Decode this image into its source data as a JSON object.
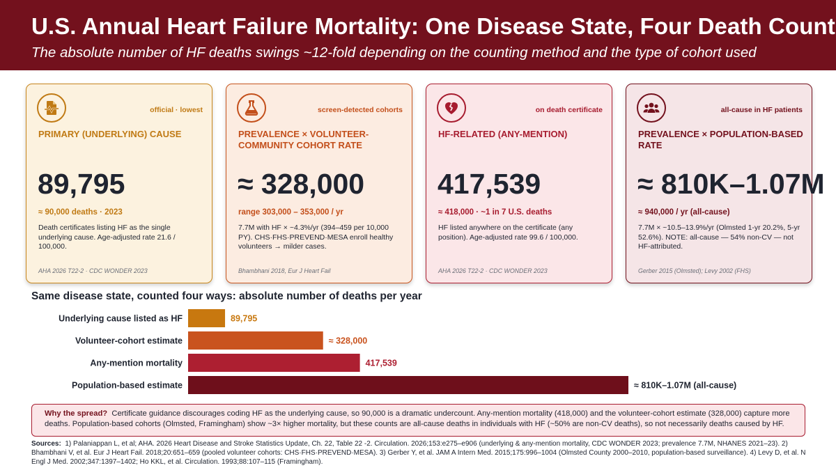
{
  "header": {
    "title": "U.S. Annual Heart Failure Mortality: One Disease State, Four Death Counts",
    "subtitle": "The absolute number of HF deaths swings ~12-fold depending on the counting method and the type of cohort used"
  },
  "cards": [
    {
      "icon": "file-pulse-icon",
      "tag": "official · lowest",
      "label": "PRIMARY (UNDERLYING) CAUSE",
      "value": "89,795",
      "sub": "≈ 90,000 deaths · 2023",
      "desc": "Death certificates listing HF as the single underlying cause. Age-adjusted rate 21.6 / 100,000.",
      "source": "AHA 2026 T22-2 · CDC WONDER 2023",
      "color": "#c07a14"
    },
    {
      "icon": "flask-icon",
      "tag": "screen-detected cohorts",
      "label": "PREVALENCE × VOLUNTEER-COMMUNITY COHORT RATE",
      "value": "≈ 328,000",
      "sub": "range 303,000 – 353,000 / yr",
      "desc": "7.7M with HF × ~4.3%/yr (394–459 per 10,000 PY). CHS·FHS·PREVEND·MESA enroll healthy volunteers → milder cases.",
      "source": "Bhambhani 2018, Eur J Heart Fail",
      "color": "#c34f1b"
    },
    {
      "icon": "broken-heart-icon",
      "tag": "on death certificate",
      "label": "HF-RELATED (ANY-MENTION)",
      "value": "417,539",
      "sub": "≈ 418,000 · ~1 in 7 U.S. deaths",
      "desc": "HF listed anywhere on the certificate (any position). Age-adjusted rate 99.6 / 100,000.",
      "source": "AHA 2026 T22-2 · CDC WONDER 2023",
      "color": "#a71c2f"
    },
    {
      "icon": "people-group-icon",
      "tag": "all-cause in HF patients",
      "label": "PREVALENCE × POPULATION-BASED RATE",
      "value": "≈ 810K–1.07M",
      "sub": "≈ 940,000 / yr (all-cause)",
      "desc": "7.7M × ~10.5–13.9%/yr (Olmsted 1-yr 20.2%, 5-yr 52.6%). NOTE: all-cause — 54% non-CV — not HF-attributed.",
      "source": "Gerber 2015 (Olmsted); Levy 2002 (FHS)",
      "color": "#73111d"
    }
  ],
  "chart_title": "Same disease state, counted four ways: absolute number of deaths per year",
  "chart_data": {
    "type": "bar",
    "orientation": "horizontal",
    "title": "Same disease state, counted four ways: absolute number of deaths per year",
    "categories": [
      "Underlying cause listed as HF",
      "Volunteer-cohort estimate",
      "Any-mention mortality",
      "Population-based estimate"
    ],
    "values": [
      89795,
      328000,
      417539,
      1070000
    ],
    "range_low": [
      null,
      null,
      null,
      810000
    ],
    "value_labels": [
      "89,795",
      "≈ 328,000",
      "417,539",
      "≈ 810K–1.07M (all-cause)"
    ],
    "colors": [
      "#c8780f",
      "#c9531e",
      "#ad1f31",
      "#6e0f1b"
    ],
    "xlim": [
      0,
      1070000
    ],
    "grid": false,
    "xaxis_visible": false
  },
  "note": {
    "lead": "Why the spread?",
    "text": "Certificate guidance discourages coding HF as the underlying cause, so 90,000 is a dramatic undercount. Any-mention mortality (418,000) and the volunteer-cohort estimate (328,000) capture more deaths. Population-based cohorts (Olmsted, Framingham) show ~3× higher mortality, but these counts are all-cause deaths in individuals with HF (~50% are non-CV deaths), so not necessarily deaths caused by HF."
  },
  "sources": {
    "lead": "Sources:",
    "text": "1) Palaniappan L, et al; AHA. 2026 Heart Disease and Stroke Statistics Update, Ch. 22, Table 22 -2. Circulation. 2026;153:e275–e906 (underlying & any-mention mortality, CDC WONDER 2023; prevalence 7.7M, NHANES 2021–23). 2) Bhambhani V, et al. Eur J Heart Fail. 2018;20:651–659 (pooled volunteer cohorts: CHS·FHS·PREVEND·MESA). 3) Gerber Y, et al. JAM A Intern Med. 2015;175:996–1004 (Olmsted County 2000–2010, population-based surveillance). 4) Levy D, et al. N Engl J Med. 2002;347:1397–1402; Ho KKL, et al. Circulation. 1993;88:107–115 (Framingham)."
  }
}
